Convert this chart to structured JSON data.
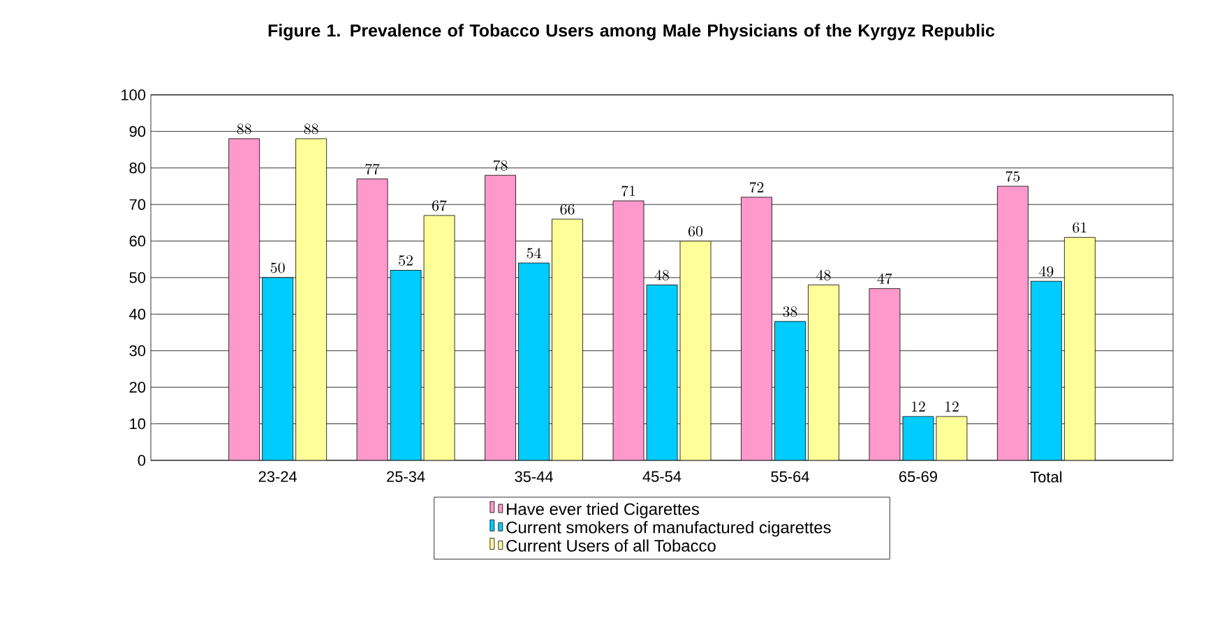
{
  "chart_data": {
    "type": "bar",
    "title": "Figure 1. Prevalence of Tobacco Users among Male Physicians of the Kyrgyz Republic",
    "categories": [
      "23-24",
      "25-34",
      "35-44",
      "45-54",
      "55-64",
      "65-69",
      "Total"
    ],
    "series": [
      {
        "name": "Have ever tried Cigarettes",
        "color": "#ff99cc",
        "values": [
          88,
          77,
          78,
          71,
          72,
          47,
          75
        ]
      },
      {
        "name": "Current smokers of manufactured cigarettes",
        "color": "#00ccff",
        "values": [
          50,
          52,
          54,
          48,
          38,
          12,
          49
        ]
      },
      {
        "name": "Current Users of all Tobacco",
        "color": "#ffff99",
        "values": [
          88,
          67,
          66,
          60,
          48,
          12,
          61
        ]
      }
    ],
    "ylim": [
      0,
      100
    ],
    "yticks": [
      0,
      10,
      20,
      30,
      40,
      50,
      60,
      70,
      80,
      90,
      100
    ],
    "grid": "y",
    "legend": "bottom",
    "data_labels": true
  }
}
